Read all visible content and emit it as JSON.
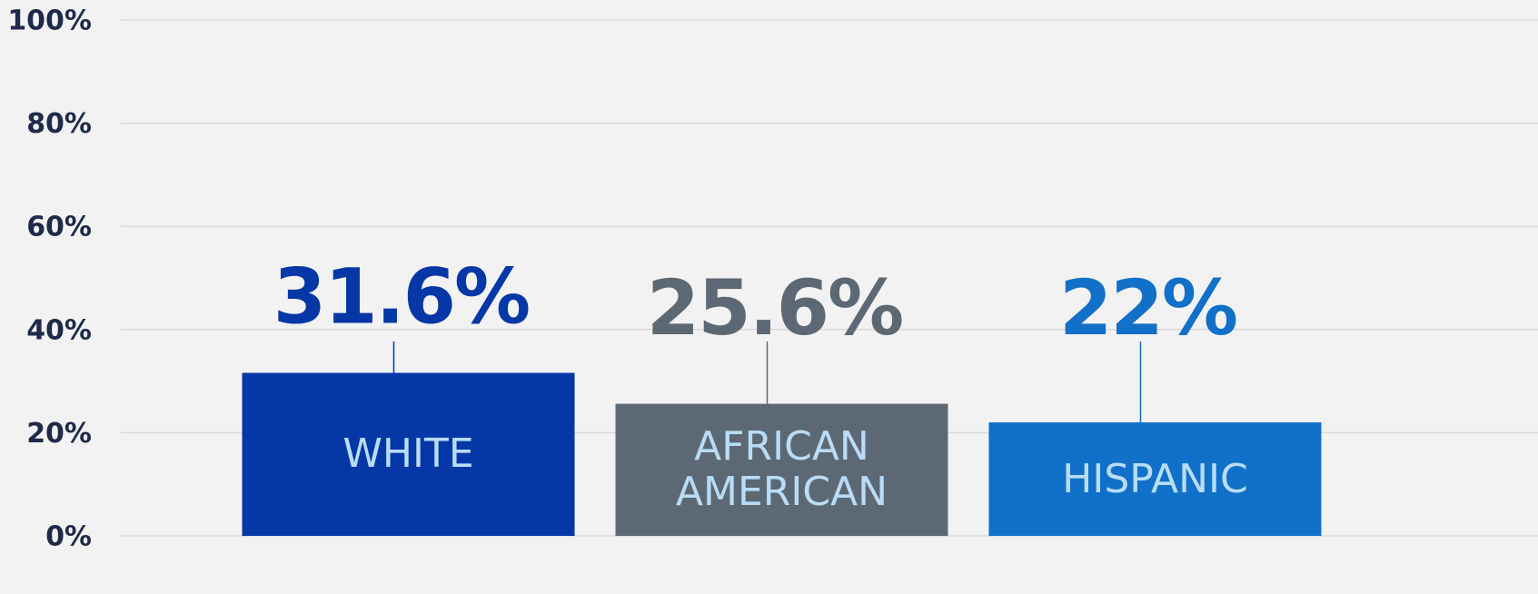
{
  "chart_data": {
    "type": "bar",
    "categories": [
      "WHITE",
      "AFRICAN AMERICAN",
      "HISPANIC"
    ],
    "values": [
      31.6,
      25.6,
      22
    ],
    "value_labels": [
      "31.6%",
      "25.6%",
      "22%"
    ],
    "colors": [
      "#0537a6",
      "#5c6873",
      "#1170c8"
    ],
    "ylim": [
      0,
      100
    ],
    "yticks": [
      {
        "value": 0,
        "label": "0%"
      },
      {
        "value": 20,
        "label": "20%"
      },
      {
        "value": 40,
        "label": "40%"
      },
      {
        "value": 60,
        "label": "60%"
      },
      {
        "value": 80,
        "label": "80%"
      },
      {
        "value": 100,
        "label": "100%"
      }
    ],
    "grid": true
  }
}
